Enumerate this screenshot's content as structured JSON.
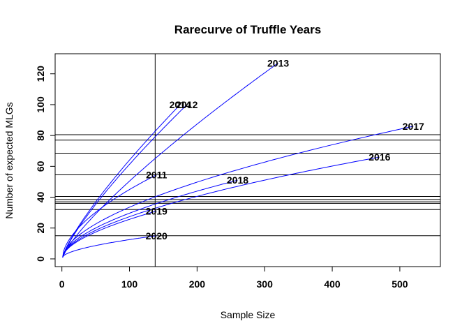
{
  "chart_data": {
    "type": "line",
    "title": "Rarecurve of Truffle Years",
    "xlabel": "Sample Size",
    "ylabel": "Number of expected MLGs",
    "xlim": [
      -10,
      560
    ],
    "ylim": [
      -5,
      133
    ],
    "xticks": [
      0,
      100,
      200,
      300,
      400,
      500
    ],
    "yticks": [
      0,
      20,
      40,
      60,
      80,
      100,
      120
    ],
    "grid": false,
    "colors": {
      "curve": "#0000ff",
      "reference_lines": "#000000",
      "axes": "#000000"
    },
    "reference_vertical_x": 138,
    "reference_horizontal_y": [
      15,
      32,
      36,
      37,
      38.5,
      40.5,
      54.5,
      68.5,
      77,
      80.5
    ],
    "series": [
      {
        "name": "2011",
        "n": 140,
        "richness": 54.5
      },
      {
        "name": "2012",
        "n": 185,
        "richness": 100
      },
      {
        "name": "2013",
        "n": 320,
        "richness": 127
      },
      {
        "name": "2014",
        "n": 175,
        "richness": 100
      },
      {
        "name": "2016",
        "n": 470,
        "richness": 66
      },
      {
        "name": "2017",
        "n": 520,
        "richness": 86
      },
      {
        "name": "2018",
        "n": 260,
        "richness": 51
      },
      {
        "name": "2019",
        "n": 140,
        "richness": 31
      },
      {
        "name": "2020",
        "n": 140,
        "richness": 15
      }
    ]
  }
}
